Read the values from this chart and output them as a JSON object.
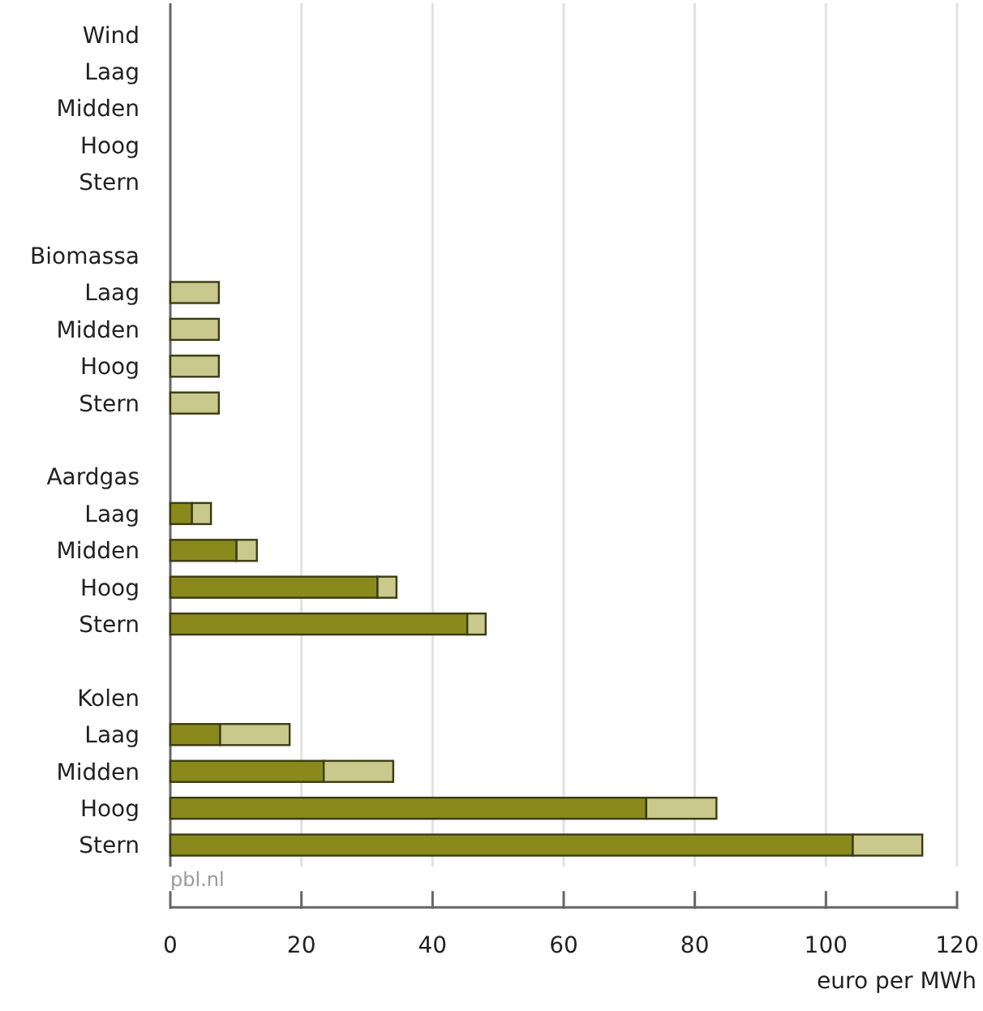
{
  "chart_data": {
    "type": "bar",
    "orientation": "horizontal",
    "stacked": true,
    "categories": [
      "Wind",
      "Laag",
      "Midden",
      "Hoog",
      "Stern",
      null,
      "Biomassa",
      "Laag",
      "Midden",
      "Hoog",
      "Stern",
      null,
      "Aardgas",
      "Laag",
      "Midden",
      "Hoog",
      "Stern",
      null,
      "Kolen",
      "Laag",
      "Midden",
      "Hoog",
      "Stern"
    ],
    "series": [
      {
        "color": "#8a8a1c",
        "values": [
          null,
          null,
          null,
          null,
          null,
          null,
          null,
          0,
          0,
          0,
          0,
          null,
          null,
          3.3,
          10.1,
          31.6,
          45.3,
          null,
          null,
          7.6,
          23.4,
          72.6,
          104.1
        ]
      },
      {
        "color": "#c9c98e",
        "values": [
          null,
          null,
          null,
          null,
          null,
          null,
          null,
          7.4,
          7.4,
          7.4,
          7.4,
          null,
          null,
          2.9,
          3.1,
          2.9,
          2.8,
          null,
          null,
          10.6,
          10.6,
          10.7,
          10.6
        ]
      }
    ],
    "xlim": [
      0,
      120
    ],
    "xticks": [
      0,
      20,
      40,
      60,
      80,
      100,
      120
    ],
    "xlabel": "euro per MWh",
    "grid": "x",
    "annotations": [
      "pbl.nl"
    ]
  }
}
